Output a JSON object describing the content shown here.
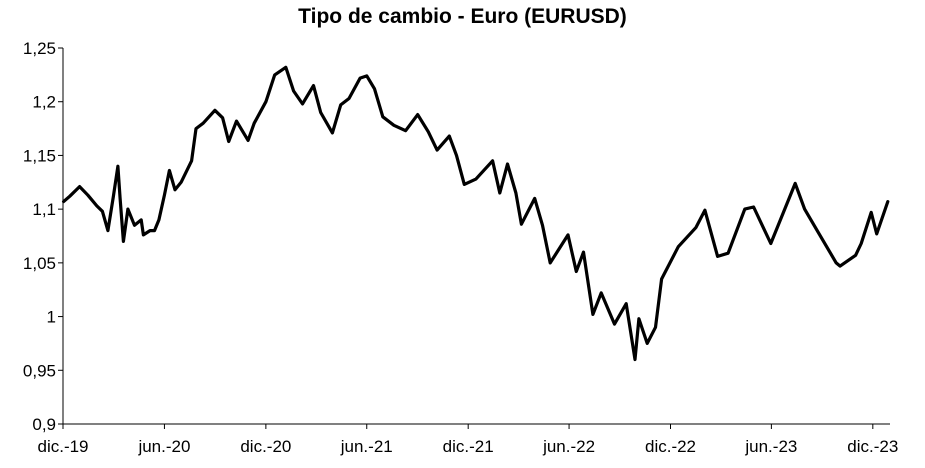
{
  "chart_data": {
    "type": "line",
    "title": "Tipo de cambio  - Euro (EURUSD)",
    "xlabel": "",
    "ylabel": "",
    "ylim": [
      0.9,
      1.25
    ],
    "yticks": [
      1.25,
      1.2,
      1.15,
      1.1,
      1.05,
      1.0,
      0.95,
      0.9
    ],
    "ytick_labels": [
      "1,25",
      "1,2",
      "1,15",
      "1,1",
      "1,05",
      "1",
      "0,95",
      "0,9"
    ],
    "xlim": [
      "2019-12-01",
      "2024-01-01"
    ],
    "xticks": [
      "2019-12-01",
      "2020-06-01",
      "2020-12-01",
      "2021-06-01",
      "2021-12-01",
      "2022-06-01",
      "2022-12-01",
      "2023-06-01",
      "2023-12-01"
    ],
    "xtick_labels": [
      "dic.-19",
      "jun.-20",
      "dic.-20",
      "jun.-21",
      "dic.-21",
      "jun.-22",
      "dic.-22",
      "jun.-23",
      "dic.-23"
    ],
    "grid": false,
    "colors": {
      "line": "#000000",
      "axis": "#000000"
    },
    "series": [
      {
        "values": [
          [
            "2019-12-02",
            1.107
          ],
          [
            "2019-12-13",
            1.112
          ],
          [
            "2019-12-31",
            1.121
          ],
          [
            "2020-01-15",
            1.113
          ],
          [
            "2020-01-31",
            1.103
          ],
          [
            "2020-02-10",
            1.098
          ],
          [
            "2020-02-20",
            1.08
          ],
          [
            "2020-03-01",
            1.112
          ],
          [
            "2020-03-09",
            1.14
          ],
          [
            "2020-03-13",
            1.11
          ],
          [
            "2020-03-19",
            1.07
          ],
          [
            "2020-03-27",
            1.1
          ],
          [
            "2020-04-08",
            1.085
          ],
          [
            "2020-04-20",
            1.09
          ],
          [
            "2020-04-24",
            1.076
          ],
          [
            "2020-05-06",
            1.08
          ],
          [
            "2020-05-14",
            1.08
          ],
          [
            "2020-05-22",
            1.09
          ],
          [
            "2020-06-01",
            1.113
          ],
          [
            "2020-06-10",
            1.136
          ],
          [
            "2020-06-20",
            1.118
          ],
          [
            "2020-07-01",
            1.125
          ],
          [
            "2020-07-20",
            1.145
          ],
          [
            "2020-07-28",
            1.175
          ],
          [
            "2020-08-10",
            1.18
          ],
          [
            "2020-08-31",
            1.192
          ],
          [
            "2020-09-14",
            1.185
          ],
          [
            "2020-09-25",
            1.163
          ],
          [
            "2020-10-09",
            1.182
          ],
          [
            "2020-10-30",
            1.164
          ],
          [
            "2020-11-10",
            1.18
          ],
          [
            "2020-12-01",
            1.2
          ],
          [
            "2020-12-17",
            1.225
          ],
          [
            "2021-01-06",
            1.232
          ],
          [
            "2021-01-20",
            1.21
          ],
          [
            "2021-02-05",
            1.198
          ],
          [
            "2021-02-25",
            1.215
          ],
          [
            "2021-03-10",
            1.19
          ],
          [
            "2021-03-31",
            1.171
          ],
          [
            "2021-04-15",
            1.197
          ],
          [
            "2021-04-30",
            1.203
          ],
          [
            "2021-05-20",
            1.222
          ],
          [
            "2021-06-01",
            1.224
          ],
          [
            "2021-06-15",
            1.212
          ],
          [
            "2021-06-30",
            1.186
          ],
          [
            "2021-07-20",
            1.178
          ],
          [
            "2021-08-10",
            1.173
          ],
          [
            "2021-09-01",
            1.188
          ],
          [
            "2021-09-20",
            1.172
          ],
          [
            "2021-10-06",
            1.155
          ],
          [
            "2021-10-28",
            1.168
          ],
          [
            "2021-11-10",
            1.15
          ],
          [
            "2021-11-24",
            1.123
          ],
          [
            "2021-12-15",
            1.128
          ],
          [
            "2022-01-14",
            1.145
          ],
          [
            "2022-01-27",
            1.115
          ],
          [
            "2022-02-10",
            1.142
          ],
          [
            "2022-02-25",
            1.115
          ],
          [
            "2022-03-07",
            1.086
          ],
          [
            "2022-03-31",
            1.11
          ],
          [
            "2022-04-14",
            1.085
          ],
          [
            "2022-04-28",
            1.05
          ],
          [
            "2022-05-30",
            1.076
          ],
          [
            "2022-06-14",
            1.042
          ],
          [
            "2022-06-27",
            1.06
          ],
          [
            "2022-07-14",
            1.002
          ],
          [
            "2022-07-29",
            1.022
          ],
          [
            "2022-08-22",
            0.993
          ],
          [
            "2022-09-12",
            1.012
          ],
          [
            "2022-09-28",
            0.96
          ],
          [
            "2022-10-05",
            0.998
          ],
          [
            "2022-10-20",
            0.975
          ],
          [
            "2022-11-04",
            0.99
          ],
          [
            "2022-11-15",
            1.035
          ],
          [
            "2022-12-15",
            1.065
          ],
          [
            "2023-01-16",
            1.083
          ],
          [
            "2023-02-01",
            1.099
          ],
          [
            "2023-02-24",
            1.056
          ],
          [
            "2023-03-15",
            1.059
          ],
          [
            "2023-04-14",
            1.1
          ],
          [
            "2023-04-30",
            1.102
          ],
          [
            "2023-05-31",
            1.068
          ],
          [
            "2023-07-14",
            1.124
          ],
          [
            "2023-07-31",
            1.1
          ],
          [
            "2023-08-25",
            1.078
          ],
          [
            "2023-09-26",
            1.05
          ],
          [
            "2023-10-03",
            1.047
          ],
          [
            "2023-10-31",
            1.057
          ],
          [
            "2023-11-10",
            1.068
          ],
          [
            "2023-11-28",
            1.097
          ],
          [
            "2023-12-08",
            1.077
          ],
          [
            "2023-12-28",
            1.107
          ]
        ]
      }
    ]
  }
}
